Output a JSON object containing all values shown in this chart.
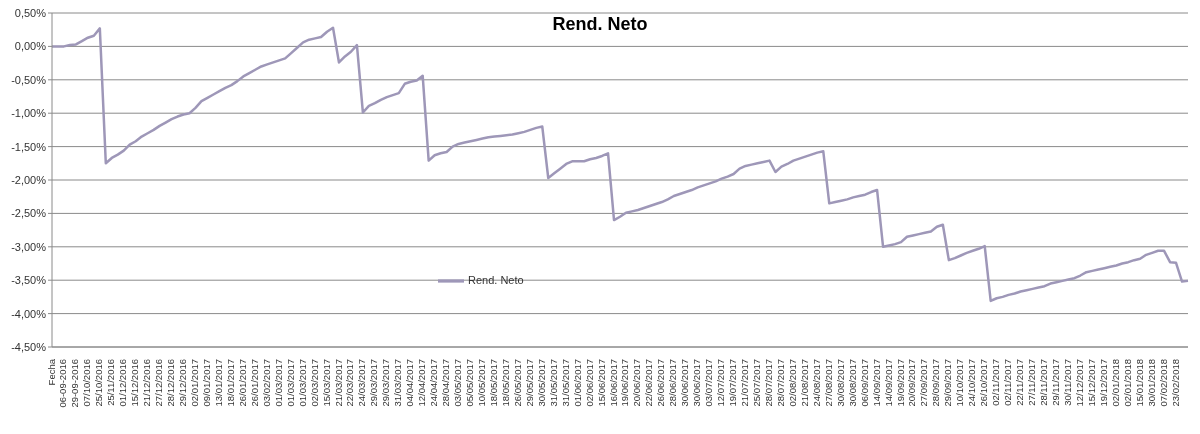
{
  "chart_data": {
    "type": "line",
    "title": "Rend. Neto",
    "categories": [
      "Fecha",
      null,
      "06-09-2016",
      null,
      "29-09-2016",
      null,
      "07/10/2016",
      null,
      "25/10/2016",
      null,
      "25/11/2016",
      null,
      "01/12/2016",
      null,
      "15/12/2016",
      null,
      "21/12/2016",
      null,
      "27/12/2016",
      null,
      "28/12/2016",
      null,
      "29/12/2016",
      null,
      "02/01/2017",
      null,
      "09/01/2017",
      null,
      "13/01/2017",
      null,
      "18/01/2017",
      null,
      "26/01/2017",
      null,
      "26/01/2017",
      null,
      "03/02/2017",
      null,
      "01/03/2017",
      null,
      "01/03/2017",
      null,
      "01/03/2017",
      null,
      "02/03/2017",
      null,
      "15/03/2017",
      null,
      "21/03/2017",
      null,
      "22/03/2017",
      null,
      "24/03/2017",
      null,
      "29/03/2017",
      null,
      "29/03/2017",
      null,
      "31/03/2017",
      null,
      "04/04/2017",
      null,
      "12/04/2017",
      null,
      "24/04/2017",
      null,
      "28/04/2017",
      null,
      "03/05/2017",
      null,
      "05/05/2017",
      null,
      "10/05/2017",
      null,
      "18/05/2017",
      null,
      "18/05/2017",
      null,
      "26/05/2017",
      null,
      "29/05/2017",
      null,
      "30/05/2017",
      null,
      "31/05/2017",
      null,
      "31/05/2017",
      null,
      "01/06/2017",
      null,
      "02/06/2017",
      null,
      "15/06/2017",
      null,
      "16/06/2017",
      null,
      "19/06/2017",
      null,
      "20/06/2017",
      null,
      "22/06/2017",
      null,
      "26/06/2017",
      null,
      "28/06/2017",
      null,
      "30/06/2017",
      null,
      "30/06/2017",
      null,
      "03/07/2017",
      null,
      "12/07/2017",
      null,
      "19/07/2017",
      null,
      "21/07/2017",
      null,
      "25/07/2017",
      null,
      "28/07/2017",
      null,
      "28/07/2017",
      null,
      "02/08/2017",
      null,
      "21/08/2017",
      null,
      "24/08/2017",
      null,
      "27/08/2017",
      null,
      "30/08/2017",
      null,
      "30/08/2017",
      null,
      "06/09/2017",
      null,
      "14/09/2017",
      null,
      "14/09/2017",
      null,
      "19/09/2017",
      null,
      "20/09/2017",
      null,
      "27/09/2017",
      null,
      "28/09/2017",
      null,
      "29/09/2017",
      null,
      "10/10/2017",
      null,
      "24/10/2017",
      null,
      "26/10/2017",
      null,
      "02/11/2017",
      null,
      "02/11/2017",
      null,
      "22/11/2017",
      null,
      "27/11/2017",
      null,
      "28/11/2017",
      null,
      "29/11/2017",
      null,
      "30/11/2017",
      null,
      "12/12/2017",
      null,
      "15/12/2017",
      null,
      "19/12/2017",
      null,
      "02/01/2018",
      null,
      "02/01/2018",
      null,
      "15/01/2018",
      null,
      "30/01/2018",
      null,
      "07/02/2018",
      null,
      "23/02/2018",
      null,
      null
    ],
    "series": [
      {
        "name": "Rend. Neto",
        "color": "#9e97b8",
        "values": [
          0,
          0,
          0,
          0.02,
          0.03,
          0.08,
          0.13,
          0.16,
          0.27,
          -1.75,
          -1.67,
          -1.62,
          -1.56,
          -1.47,
          -1.42,
          -1.35,
          -1.3,
          -1.25,
          -1.19,
          -1.14,
          -1.09,
          -1.05,
          -1.02,
          -1,
          -0.92,
          -0.82,
          -0.77,
          -0.72,
          -0.67,
          -0.62,
          -0.58,
          -0.52,
          -0.45,
          -0.4,
          -0.35,
          -0.3,
          -0.27,
          -0.24,
          -0.21,
          -0.18,
          -0.1,
          -0.02,
          0.06,
          0.1,
          0.12,
          0.14,
          0.22,
          0.28,
          -0.24,
          -0.15,
          -0.08,
          0.02,
          -0.99,
          -0.89,
          -0.85,
          -0.8,
          -0.76,
          -0.73,
          -0.7,
          -0.56,
          -0.53,
          -0.51,
          -0.44,
          -1.71,
          -1.63,
          -1.6,
          -1.58,
          -1.5,
          -1.46,
          -1.44,
          -1.42,
          -1.4,
          -1.38,
          -1.36,
          -1.35,
          -1.34,
          -1.33,
          -1.32,
          -1.3,
          -1.28,
          -1.25,
          -1.22,
          -1.2,
          -1.97,
          -1.9,
          -1.83,
          -1.76,
          -1.72,
          -1.72,
          -1.72,
          -1.69,
          -1.67,
          -1.64,
          -1.6,
          -2.6,
          -2.55,
          -2.49,
          -2.47,
          -2.45,
          -2.42,
          -2.39,
          -2.36,
          -2.33,
          -2.29,
          -2.24,
          -2.21,
          -2.18,
          -2.15,
          -2.11,
          -2.08,
          -2.05,
          -2.02,
          -1.98,
          -1.95,
          -1.91,
          -1.83,
          -1.79,
          -1.77,
          -1.75,
          -1.73,
          -1.71,
          -1.88,
          -1.8,
          -1.76,
          -1.71,
          -1.68,
          -1.65,
          -1.62,
          -1.59,
          -1.57,
          -2.35,
          -2.33,
          -2.31,
          -2.29,
          -2.26,
          -2.24,
          -2.22,
          -2.18,
          -2.15,
          -3,
          -2.98,
          -2.96,
          -2.93,
          -2.85,
          -2.83,
          -2.81,
          -2.79,
          -2.77,
          -2.7,
          -2.67,
          -3.2,
          -3.17,
          -3.13,
          -3.09,
          -3.06,
          -3.03,
          -2.99,
          -3.81,
          -3.77,
          -3.75,
          -3.72,
          -3.7,
          -3.67,
          -3.65,
          -3.63,
          -3.61,
          -3.59,
          -3.55,
          -3.53,
          -3.51,
          -3.49,
          -3.47,
          -3.43,
          -3.38,
          -3.36,
          -3.34,
          -3.32,
          -3.3,
          -3.28,
          -3.25,
          -3.23,
          -3.2,
          -3.18,
          -3.12,
          -3.09,
          -3.06,
          -3.06,
          -3.23,
          -3.24,
          -3.52,
          -3.51
        ]
      }
    ],
    "ylim": [
      -4.5,
      0.5
    ],
    "yticks": [
      {
        "value": -4.5,
        "label": "-4,50%"
      },
      {
        "value": -4,
        "label": "-4,00%"
      },
      {
        "value": -3.5,
        "label": "-3,50%"
      },
      {
        "value": -3,
        "label": "-3,00%"
      },
      {
        "value": -2.5,
        "label": "-2,50%"
      },
      {
        "value": -2,
        "label": "-2,00%"
      },
      {
        "value": -1.5,
        "label": "-1,50%"
      },
      {
        "value": -1,
        "label": "-1,00%"
      },
      {
        "value": -0.5,
        "label": "-0,50%"
      },
      {
        "value": 0,
        "label": "0,00%"
      },
      {
        "value": 0.5,
        "label": "0,50%"
      }
    ],
    "grid": "y",
    "legend": "bottom"
  }
}
